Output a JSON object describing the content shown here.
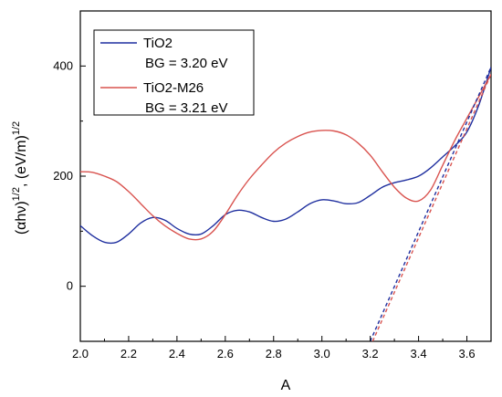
{
  "chart_data": {
    "type": "line",
    "title": "",
    "xlabel": "A",
    "ylabel": "(αhν)",
    "ylabel_sup1": "1/2",
    "ylabel_mid": ", (eV/m)",
    "ylabel_sup2": "1/2",
    "xlim": [
      2.0,
      3.7
    ],
    "ylim": [
      -100,
      500
    ],
    "x_ticks": [
      2.0,
      2.2,
      2.4,
      2.6,
      2.8,
      3.0,
      3.2,
      3.4,
      3.6
    ],
    "x_tick_labels": [
      "2.0",
      "2.2",
      "2.4",
      "2.6",
      "2.8",
      "3.0",
      "3.2",
      "3.4",
      "3.6"
    ],
    "y_ticks": [
      0,
      200,
      400
    ],
    "y_tick_labels": [
      "0",
      "200",
      "400"
    ],
    "grid": false,
    "legend_position": "top-left",
    "series": [
      {
        "name": "TiO2",
        "note": "BG = 3.20 eV",
        "color": "#1f2f9f",
        "x": [
          2.0,
          2.05,
          2.1,
          2.15,
          2.2,
          2.25,
          2.3,
          2.35,
          2.4,
          2.45,
          2.5,
          2.55,
          2.6,
          2.65,
          2.7,
          2.75,
          2.8,
          2.85,
          2.9,
          2.95,
          3.0,
          3.05,
          3.1,
          3.15,
          3.2,
          3.25,
          3.3,
          3.35,
          3.4,
          3.45,
          3.5,
          3.55,
          3.6,
          3.65,
          3.7
        ],
        "y": [
          110,
          92,
          80,
          80,
          95,
          115,
          125,
          120,
          105,
          95,
          95,
          110,
          130,
          138,
          135,
          125,
          118,
          122,
          135,
          150,
          157,
          155,
          150,
          152,
          165,
          180,
          188,
          193,
          200,
          215,
          235,
          255,
          280,
          330,
          398
        ]
      },
      {
        "name": "TiO2-M26",
        "note": "BG = 3.21 eV",
        "color": "#d9534f",
        "x": [
          2.0,
          2.05,
          2.1,
          2.15,
          2.2,
          2.25,
          2.3,
          2.35,
          2.4,
          2.45,
          2.5,
          2.55,
          2.6,
          2.65,
          2.7,
          2.75,
          2.8,
          2.85,
          2.9,
          2.95,
          3.0,
          3.05,
          3.1,
          3.15,
          3.2,
          3.25,
          3.3,
          3.35,
          3.4,
          3.45,
          3.5,
          3.55,
          3.6,
          3.65,
          3.7
        ],
        "y": [
          208,
          207,
          200,
          190,
          172,
          150,
          128,
          110,
          96,
          86,
          86,
          100,
          130,
          165,
          195,
          220,
          243,
          260,
          272,
          280,
          283,
          282,
          275,
          260,
          238,
          208,
          180,
          160,
          155,
          175,
          220,
          265,
          305,
          345,
          385
        ]
      }
    ],
    "tangent_lines": [
      {
        "color": "#1f2f9f",
        "x": [
          3.2,
          3.7
        ],
        "y": [
          -100,
          398
        ]
      },
      {
        "color": "#d9534f",
        "x": [
          3.21,
          3.7
        ],
        "y": [
          -100,
          385
        ]
      }
    ]
  }
}
